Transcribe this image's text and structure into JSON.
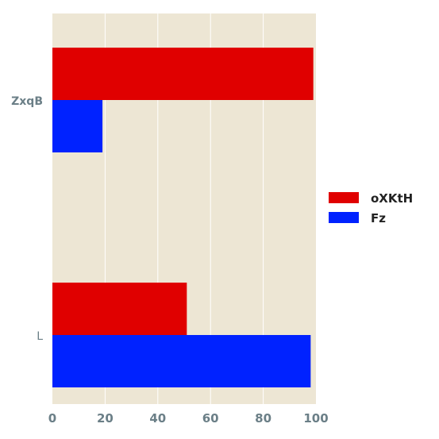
{
  "chart_data": {
    "type": "bar",
    "orientation": "horizontal",
    "categories": [
      "ZxqB",
      "L"
    ],
    "series": [
      {
        "name": "oXKtH",
        "color": "#e00000",
        "values": [
          99,
          51
        ]
      },
      {
        "name": "Fz",
        "color": "#0022ff",
        "values": [
          19,
          98
        ]
      }
    ],
    "xlim": [
      0,
      100
    ],
    "xticks": [
      "0",
      "20",
      "40",
      "60",
      "80",
      "100"
    ],
    "grid": "vertical",
    "legend_position": "right",
    "plot_background": "#ede6d4"
  }
}
